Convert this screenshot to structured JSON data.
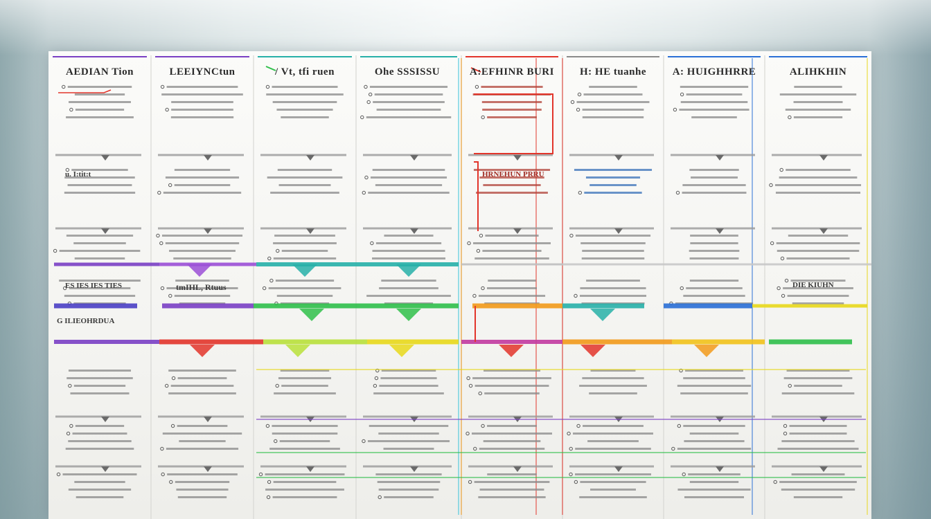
{
  "board": {
    "columns": [
      {
        "title": "AEDIAN Tion",
        "accent": "#7a4fc2",
        "row_label": "u. I:tit:t",
        "band_label": "ES IES IES TIES",
        "lower_label": "G ILIEOHRDUA"
      },
      {
        "title": "LEEIYNCtun",
        "accent": "#7a4fc2",
        "row_label": "",
        "band_label": "tmIHL, Rtuus",
        "lower_label": ""
      },
      {
        "title": "/ Vt, tfi ruen",
        "accent": "#2bb3a0",
        "row_label": "",
        "band_label": "",
        "lower_label": ""
      },
      {
        "title": "Ohe SSSISSU",
        "accent": "#3ec24a",
        "row_label": "",
        "band_label": "",
        "lower_label": ""
      },
      {
        "title": "A:EFHINR BURI",
        "accent": "#e0392b",
        "row_label": "HRNEHUN PRRU",
        "band_label": "",
        "lower_label": ""
      },
      {
        "title": "H: HE tuanhe",
        "accent": "#2a8fd6",
        "row_label": "",
        "band_label": "",
        "lower_label": ""
      },
      {
        "title": "A: HUIGHHRRE",
        "accent": "#2a5fd6",
        "row_label": "",
        "band_label": "",
        "lower_label": ""
      },
      {
        "title": "ALIHKHIN",
        "accent": "#2a5fd6",
        "row_label": "",
        "band_label": "DIE KIUHN",
        "lower_label": ""
      }
    ],
    "colors": {
      "purple": "#7a3fc4",
      "teal": "#27b0a8",
      "green": "#2fbf4a",
      "yellow": "#e8d81a",
      "red": "#e2342a",
      "orange": "#f29a1a",
      "blue": "#2a6fd6",
      "cyan": "#36c2d8",
      "gray": "#8a8a8a"
    }
  }
}
